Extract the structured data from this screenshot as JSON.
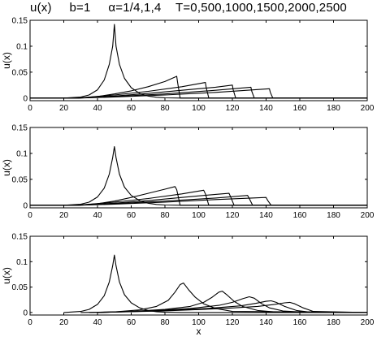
{
  "title": "u(x)     b=1     α=1/4,1,4    T=0,500,1000,1500,2000,2500",
  "chart_data": [
    {
      "type": "line",
      "panel": "top",
      "ylabel": "u(x)",
      "xlabel": "",
      "xlim": [
        0,
        200
      ],
      "ylim": [
        -0.005,
        0.15
      ],
      "xticks": [
        0,
        20,
        40,
        60,
        80,
        100,
        120,
        140,
        160,
        180,
        200
      ],
      "yticks": [
        0,
        0.05,
        0.1,
        0.15
      ],
      "ytick_labels": [
        "0",
        "0.05",
        "0.1",
        "0.15"
      ],
      "grid": false,
      "series": [
        {
          "x": [
            20,
            30,
            35,
            40,
            44,
            47,
            49,
            50,
            51,
            53,
            56,
            60,
            65,
            70,
            75,
            80,
            90,
            200
          ],
          "y": [
            0,
            0.002,
            0.006,
            0.016,
            0.035,
            0.065,
            0.1,
            0.142,
            0.1,
            0.065,
            0.038,
            0.02,
            0.009,
            0.004,
            0.0015,
            0.0005,
            0,
            0
          ]
        },
        {
          "x": [
            0,
            28,
            40,
            50,
            60,
            70,
            80,
            87,
            87.5,
            89,
            200
          ],
          "y": [
            0,
            0,
            0.003,
            0.008,
            0.014,
            0.022,
            0.032,
            0.042,
            0.03,
            0,
            0
          ]
        },
        {
          "x": [
            0,
            28,
            50,
            70,
            90,
            104,
            104.5,
            106,
            200
          ],
          "y": [
            0,
            0,
            0.006,
            0.013,
            0.022,
            0.03,
            0.02,
            0,
            0
          ]
        },
        {
          "x": [
            0,
            28,
            50,
            70,
            90,
            110,
            120,
            120.5,
            122,
            200
          ],
          "y": [
            0,
            0,
            0.004,
            0.009,
            0.015,
            0.021,
            0.025,
            0.016,
            0,
            0
          ]
        },
        {
          "x": [
            0,
            28,
            50,
            80,
            110,
            131,
            131.5,
            133,
            200
          ],
          "y": [
            0,
            0,
            0.003,
            0.008,
            0.015,
            0.021,
            0.013,
            0,
            0
          ]
        },
        {
          "x": [
            0,
            28,
            50,
            80,
            110,
            142,
            142.5,
            144,
            200
          ],
          "y": [
            0,
            0,
            0.002,
            0.006,
            0.011,
            0.018,
            0.011,
            0,
            0
          ]
        }
      ]
    },
    {
      "type": "line",
      "panel": "middle",
      "ylabel": "u(x)",
      "xlabel": "",
      "xlim": [
        0,
        200
      ],
      "ylim": [
        -0.005,
        0.15
      ],
      "xticks": [
        0,
        20,
        40,
        60,
        80,
        100,
        120,
        140,
        160,
        180,
        200
      ],
      "yticks": [
        0,
        0.05,
        0.1,
        0.15
      ],
      "ytick_labels": [
        "0",
        "0.05",
        "0.1",
        "0.15"
      ],
      "grid": false,
      "series": [
        {
          "x": [
            20,
            30,
            35,
            40,
            44,
            47,
            49,
            50,
            51,
            53,
            56,
            60,
            65,
            70,
            75,
            80,
            90,
            200
          ],
          "y": [
            0,
            0.002,
            0.006,
            0.016,
            0.033,
            0.06,
            0.092,
            0.113,
            0.092,
            0.06,
            0.035,
            0.019,
            0.009,
            0.004,
            0.0015,
            0.0005,
            0,
            0
          ]
        },
        {
          "x": [
            0,
            28,
            40,
            50,
            60,
            70,
            80,
            86,
            87,
            89,
            200
          ],
          "y": [
            0,
            0,
            0.003,
            0.008,
            0.015,
            0.023,
            0.031,
            0.036,
            0.03,
            0,
            0
          ]
        },
        {
          "x": [
            0,
            28,
            50,
            70,
            90,
            103,
            104,
            106,
            200
          ],
          "y": [
            0,
            0,
            0.006,
            0.013,
            0.022,
            0.029,
            0.022,
            0,
            0
          ]
        },
        {
          "x": [
            0,
            28,
            50,
            70,
            90,
            110,
            118,
            119,
            121,
            200
          ],
          "y": [
            0,
            0,
            0.004,
            0.009,
            0.015,
            0.021,
            0.023,
            0.016,
            0,
            0
          ]
        },
        {
          "x": [
            0,
            28,
            50,
            80,
            110,
            129,
            130,
            132,
            200
          ],
          "y": [
            0,
            0,
            0.003,
            0.008,
            0.014,
            0.019,
            0.013,
            0,
            0
          ]
        },
        {
          "x": [
            0,
            28,
            50,
            80,
            110,
            140,
            141,
            143,
            200
          ],
          "y": [
            0,
            0,
            0.002,
            0.006,
            0.011,
            0.015,
            0.009,
            0,
            0
          ]
        }
      ]
    },
    {
      "type": "line",
      "panel": "bottom",
      "ylabel": "u(x)",
      "xlabel": "x",
      "xlim": [
        0,
        200
      ],
      "ylim": [
        -0.005,
        0.15
      ],
      "xticks": [
        0,
        20,
        40,
        60,
        80,
        100,
        120,
        140,
        160,
        180,
        200
      ],
      "yticks": [
        0,
        0.05,
        0.1,
        0.15
      ],
      "ytick_labels": [
        "0",
        "0.05",
        "0.1",
        "0.15"
      ],
      "grid": false,
      "series": [
        {
          "x": [
            20,
            30,
            35,
            40,
            44,
            47,
            49,
            50,
            51,
            53,
            56,
            60,
            65,
            70,
            75,
            80,
            90,
            200
          ],
          "y": [
            0,
            0.002,
            0.006,
            0.016,
            0.033,
            0.06,
            0.092,
            0.113,
            0.092,
            0.06,
            0.035,
            0.019,
            0.009,
            0.004,
            0.0015,
            0.0005,
            0,
            0
          ]
        },
        {
          "x": [
            30,
            50,
            65,
            75,
            82,
            86,
            89,
            91,
            94,
            98,
            103,
            110,
            120,
            200
          ],
          "y": [
            0,
            0.001,
            0.005,
            0.012,
            0.024,
            0.04,
            0.055,
            0.058,
            0.045,
            0.03,
            0.017,
            0.008,
            0.002,
            0
          ]
        },
        {
          "x": [
            35,
            60,
            80,
            95,
            103,
            108,
            112,
            114,
            117,
            121,
            126,
            135,
            145,
            200
          ],
          "y": [
            0,
            0.002,
            0.006,
            0.012,
            0.02,
            0.03,
            0.04,
            0.042,
            0.034,
            0.022,
            0.012,
            0.004,
            0.001,
            0
          ]
        },
        {
          "x": [
            40,
            70,
            95,
            112,
            120,
            126,
            130,
            133,
            137,
            142,
            150,
            160,
            200
          ],
          "y": [
            0,
            0.003,
            0.008,
            0.014,
            0.02,
            0.027,
            0.031,
            0.028,
            0.018,
            0.009,
            0.003,
            0.001,
            0
          ]
        },
        {
          "x": [
            40,
            75,
            105,
            125,
            134,
            140,
            143,
            146,
            151,
            158,
            165,
            200
          ],
          "y": [
            0,
            0.003,
            0.008,
            0.013,
            0.018,
            0.022,
            0.023,
            0.02,
            0.012,
            0.004,
            0.001,
            0
          ]
        },
        {
          "x": [
            40,
            80,
            115,
            135,
            145,
            151,
            154,
            157,
            162,
            168,
            200
          ],
          "y": [
            0,
            0.003,
            0.008,
            0.012,
            0.016,
            0.019,
            0.02,
            0.017,
            0.009,
            0.002,
            0
          ]
        }
      ]
    }
  ]
}
